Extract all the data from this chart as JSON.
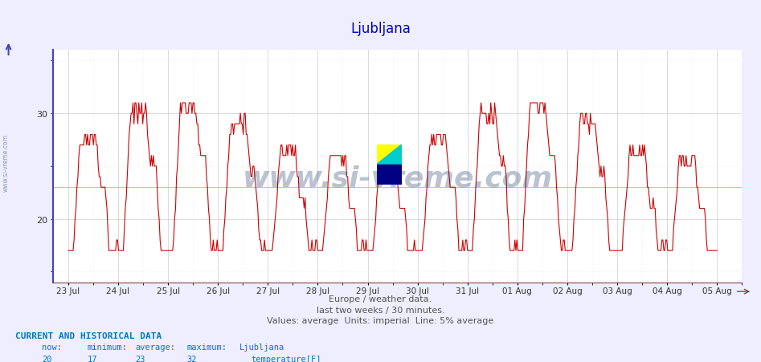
{
  "title": "Ljubljana",
  "title_color": "#0000cc",
  "title_fontsize": 12,
  "xlabel_text1": "Europe / weather data.",
  "xlabel_text2": "last two weeks / 30 minutes.",
  "xlabel_text3": "Values: average  Units: imperial  Line: 5% average",
  "xlabel_color": "#555555",
  "bottom_label1": "CURRENT AND HISTORICAL DATA",
  "bottom_headers": [
    "now:",
    "minimum:",
    "average:",
    "maximum:",
    "Ljubljana"
  ],
  "bottom_values": [
    "20",
    "17",
    "23",
    "32",
    "temperature[F]"
  ],
  "bottom_color": "#0077cc",
  "ylim": [
    14,
    36
  ],
  "yticks": [
    20,
    30
  ],
  "line_color": "#cc0000",
  "avg_line_color": "#ffaaaa",
  "avg_value": 23,
  "background_color": "#eeeeff",
  "plot_bg_color": "#ffffff",
  "grid_color_major": "#cccccc",
  "grid_color_minor": "#ffdddd",
  "watermark_text": "www.si-vreme.com",
  "watermark_color": "#1a3a6a",
  "watermark_alpha": 0.3,
  "xtick_labels": [
    "23 Jul",
    "24 Jul",
    "25 Jul",
    "26 Jul",
    "27 Jul",
    "28 Jul",
    "29 Jul",
    "30 Jul",
    "31 Jul",
    "01 Aug",
    "02 Aug",
    "03 Aug",
    "04 Aug",
    "05 Aug"
  ],
  "xtick_positions": [
    0,
    1,
    2,
    3,
    4,
    5,
    6,
    7,
    8,
    9,
    10,
    11,
    12,
    13
  ],
  "n_points": 672,
  "temp_min": 17,
  "temp_max": 32,
  "temp_now": 20,
  "temp_avg": 23
}
